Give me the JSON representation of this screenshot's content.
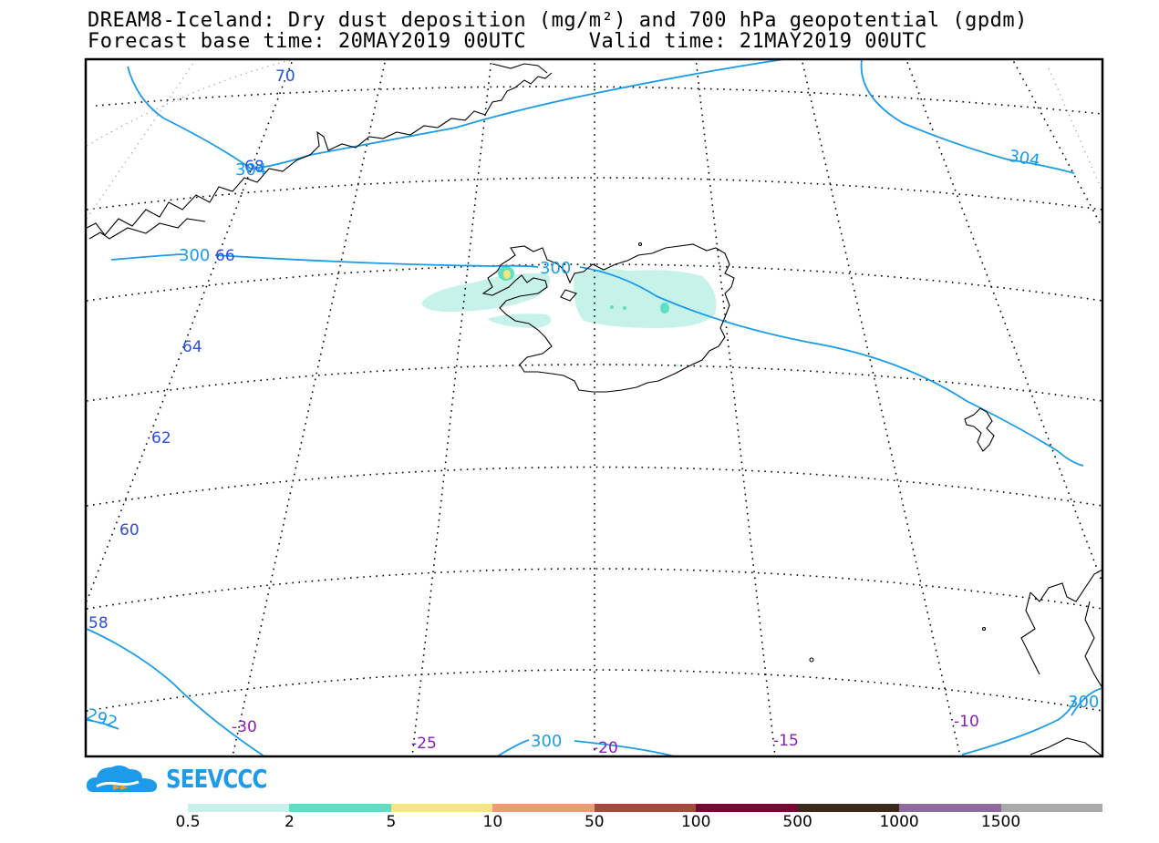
{
  "header": {
    "title_line1": "DREAM8-Iceland: Dry dust deposition (mg/m²) and 700 hPa geopotential (gpdm)",
    "title_line2": "Forecast base time: 20MAY2019 00UTC     Valid time: 21MAY2019 00UTC"
  },
  "map": {
    "lat_labels": [
      "70",
      "68",
      "66",
      "64",
      "62",
      "60",
      "58"
    ],
    "lon_labels": [
      "-30",
      "-25",
      "-20",
      "-15",
      "-10"
    ],
    "contour_labels": [
      "304",
      "304",
      "300",
      "300",
      "300",
      "300",
      "292"
    ],
    "colors": {
      "frame": "#000000",
      "contour": "#1a9ce8",
      "lat_label": "#2a4de0",
      "lon_label": "#8a1fb8",
      "coast": "#000000"
    }
  },
  "logo": {
    "text": "SEEVCCC"
  },
  "colorbar": {
    "colors": [
      "#c6f2ea",
      "#5de0c2",
      "#f6e67e",
      "#ef9a72",
      "#a9473c",
      "#7a0530",
      "#3b2a1c",
      "#8e6b9e",
      "#a9a9a9"
    ],
    "labels": [
      "0.5",
      "2",
      "5",
      "10",
      "50",
      "100",
      "500",
      "1000",
      "1500"
    ]
  }
}
